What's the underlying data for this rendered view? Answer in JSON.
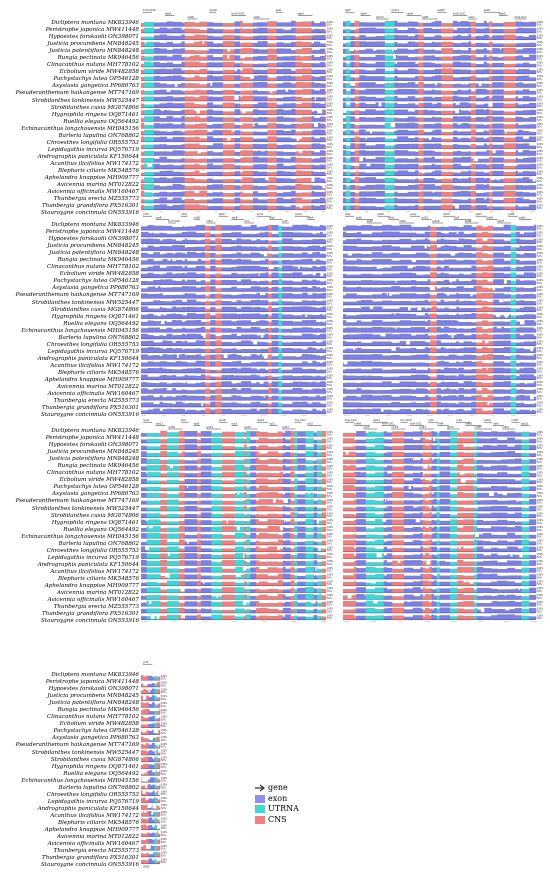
{
  "species": [
    "Dicliptera montana MK833946",
    "Peristrophe japonica MW411448",
    "Hypoestes forskaolii ON398071",
    "Justicia procumbens MN848245",
    "Justicia patentiflora MN848248",
    "Rungia pectinata MK946456",
    "Clinacanthus nutans MH778102",
    "Ecbolium viride MW482858",
    "Pachystachys lutea OP546128",
    "Asystasia gangetica PP680763",
    "Pseuderanthemum haikangense MT747169",
    "Strobilanthes tonkinensis MW525447",
    "Strobilanthes cusia MG874806",
    "Hygrophila ringens OQ871461",
    "Ruellia elegans OQ564492",
    "Echinacanthus longzhouensis MH045156",
    "Barleria lupulina ON768802",
    "Chroesthes longifolia OR555753",
    "Lepidagathis incurva PQ576719",
    "Andrographis paniculata KF150644",
    "Acanthus ilicifolius MW174172",
    "Blepharis ciliaris MK548576",
    "Aphelandra knappiae MH909777",
    "Avicennia marina MT012822",
    "Avicennia officinalis MW160467",
    "Thunbergia erecta MZ555773",
    "Thunbergia grandiflora PX516301",
    "Stauroygne concinnula ON553916"
  ],
  "legend": {
    "gene": "gene",
    "exon": "exon",
    "utrna": "UTRNA",
    "cns": "CNS"
  },
  "colors": {
    "gene": "#7b7fe6",
    "exon": "#8e8ef0",
    "utrna": "#3fd6d8",
    "cns": "#f08080",
    "arrow": "#333333"
  },
  "percent_labels": [
    "100%",
    "50%"
  ],
  "gene_annotations": {
    "p1a": [
      "trnH-GUG",
      "psbA",
      "matK",
      "rps16",
      "trnQ-UUG",
      "psbK",
      "psbI",
      "atpA"
    ],
    "p1b": [
      "atpF",
      "atpH",
      "rpoC2",
      "rpoC1",
      "rpoB",
      "petN",
      "psbM",
      "trnD-GUC",
      "psbC",
      "psbD",
      "psbZ",
      "trnG-GCC"
    ],
    "p2a": [
      "ycf3",
      "rps4",
      "trnT-UGU",
      "ndhJ",
      "ndhK",
      "ndhC",
      "atpE",
      "atpB",
      "rbcL",
      "accD",
      "psaI",
      "ycf4",
      "cemA",
      "petA"
    ],
    "p2b": [
      "psbJ",
      "psbL",
      "psbF",
      "psbE",
      "petL",
      "petG",
      "psaJ",
      "rpl33",
      "rps18",
      "rpl20",
      "clpP",
      "psbB",
      "psbT",
      "psbN",
      "psbH",
      "petB",
      "petD"
    ],
    "p3a": [
      "rpoA",
      "rps11",
      "rpl36",
      "infA",
      "rps8",
      "rpl14",
      "rpl16",
      "rps3",
      "rpl22",
      "rps19",
      "rpl2",
      "rpl23",
      "trnI-CAU",
      "ycf2"
    ],
    "p3b": [
      "trnL-CAA",
      "ndhB",
      "rps7",
      "rps12",
      "trnV-GAC",
      "rrn16",
      "trnI-GAU",
      "trnA-UGC",
      "rrn23",
      "ycf1",
      "ndhF",
      "rpl32",
      "ccsA",
      "ndhD",
      "ndhE",
      "ndhG",
      "ndhI",
      "ndhA",
      "ndhH",
      "rps15"
    ],
    "p4": [
      "ycf1"
    ]
  },
  "axis_ticks": {
    "p1a": [
      "0k",
      "4k",
      "8k",
      "12k",
      "16k",
      "20k",
      "24k",
      "28k",
      "32k",
      "36k",
      "40k"
    ],
    "p1b": [
      "44k",
      "48k",
      "52k",
      "56k",
      "60k",
      "64k",
      "68k",
      "72k",
      "76k",
      "80k"
    ],
    "p2a": [
      "80k",
      "84k",
      "88k",
      "92k",
      "96k",
      "100k",
      "104k",
      "108k",
      "112k",
      "116k"
    ],
    "p2b": [
      "116k",
      "120k",
      "124k",
      "128k",
      "132k",
      "136k",
      "140k",
      "144k",
      "148k",
      "152k"
    ],
    "p3a": [
      "152k",
      "156k",
      "160k",
      "164k",
      "168k",
      "172k",
      "176k"
    ],
    "p3b": [
      "176k",
      "180k",
      "184k",
      "188k",
      "192k",
      "196k",
      "200k",
      "204k"
    ],
    "p4": [
      "208k"
    ]
  }
}
